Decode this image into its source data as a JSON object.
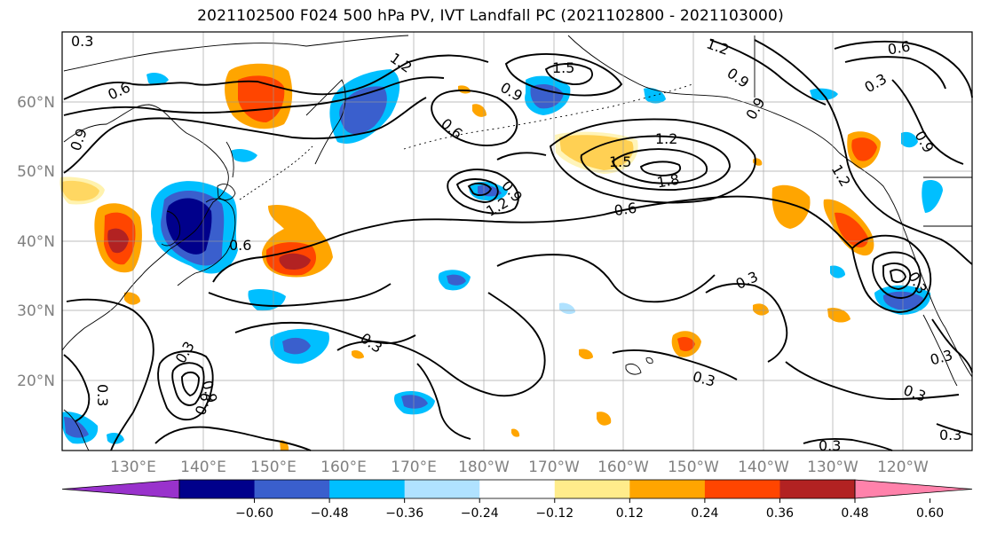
{
  "title": "2021102500 F024 500 hPa PV, IVT Landfall PC (2021102800 - 2021103000)",
  "lat_labels": [
    "60°N",
    "50°N",
    "40°N",
    "30°N",
    "20°N"
  ],
  "lon_labels": [
    "130°E",
    "140°E",
    "150°E",
    "160°E",
    "170°E",
    "180°W",
    "170°W",
    "160°W",
    "150°W",
    "140°W",
    "130°W",
    "120°W"
  ],
  "colorbar": {
    "tick_labels": [
      "−0.60",
      "−0.48",
      "−0.36",
      "−0.24",
      "−0.12",
      "0.12",
      "0.24",
      "0.36",
      "0.48",
      "0.60"
    ],
    "colors": [
      "#9932CC",
      "#00008B",
      "#3A5FCD",
      "#00BFFF",
      "#B0E2FF",
      "#FFFFFF",
      "#FFEC8B",
      "#FFA500",
      "#FF4500",
      "#B22222",
      "#FF82AB"
    ]
  },
  "contour_labels": [
    {
      "text": "0.3"
    },
    {
      "text": "1.2"
    },
    {
      "text": "0.9"
    },
    {
      "text": "1.5"
    },
    {
      "text": "0.6"
    },
    {
      "text": "0.9"
    },
    {
      "text": "0.6"
    },
    {
      "text": "1.2"
    },
    {
      "text": "0.9"
    },
    {
      "text": "0.3"
    },
    {
      "text": "0.6"
    },
    {
      "text": "0.9"
    },
    {
      "text": "1.2"
    },
    {
      "text": "1.5"
    },
    {
      "text": "1.8"
    },
    {
      "text": "0.9"
    },
    {
      "text": "0.6"
    },
    {
      "text": "0.9"
    },
    {
      "text": "1.2"
    },
    {
      "text": "0.6"
    },
    {
      "text": "0.3"
    },
    {
      "text": "0.3"
    },
    {
      "text": "0.3"
    },
    {
      "text": "0.3"
    },
    {
      "text": "0.3"
    },
    {
      "text": "0.9"
    },
    {
      "text": "0.3"
    },
    {
      "text": "0.3"
    },
    {
      "text": "0.3"
    },
    {
      "text": "0.3"
    },
    {
      "text": "0.3"
    },
    {
      "text": "0.9"
    },
    {
      "text": "1.2"
    }
  ]
}
